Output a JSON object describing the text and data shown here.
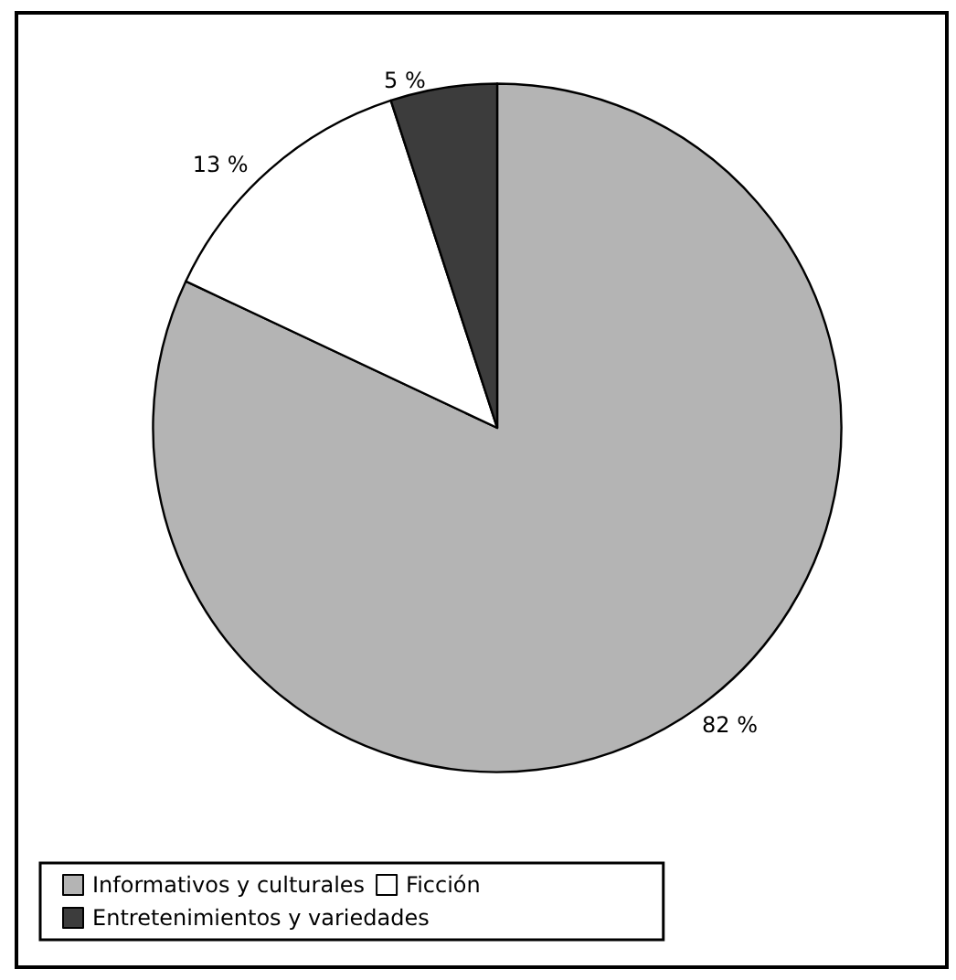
{
  "chart_data": {
    "type": "pie",
    "categories": [
      "Informativos y culturales",
      "Ficción",
      "Entretenimientos y variedades"
    ],
    "values": [
      82,
      13,
      5
    ],
    "colors": [
      "#b4b4b4",
      "#ffffff",
      "#3c3c3c"
    ],
    "value_labels": [
      "82 %",
      "13 %",
      "5 %"
    ],
    "legend": "bottom"
  }
}
